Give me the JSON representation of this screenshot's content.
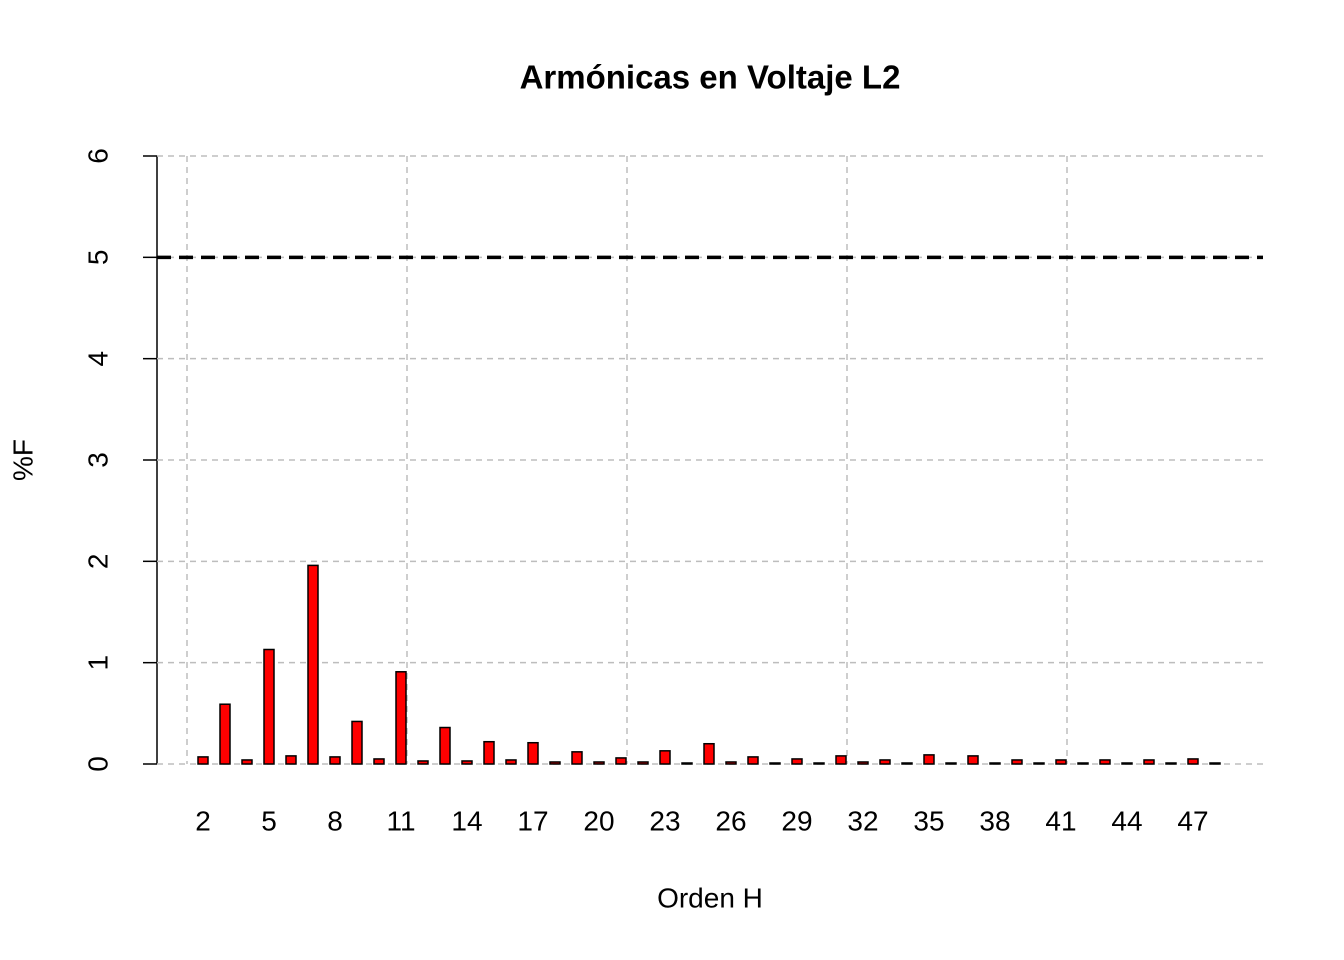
{
  "chart_data": {
    "type": "bar",
    "title": "Armónicas en Voltaje L2",
    "x_label": "Orden H",
    "y_label": "%F",
    "categories": [
      "2",
      null,
      null,
      "5",
      null,
      null,
      "8",
      null,
      null,
      "11",
      null,
      null,
      "14",
      null,
      null,
      "17",
      null,
      null,
      "20",
      null,
      null,
      "23",
      null,
      null,
      "26",
      null,
      null,
      "29",
      null,
      null,
      "32",
      null,
      null,
      "35",
      null,
      null,
      "38",
      null,
      null,
      "41",
      null,
      null,
      "44",
      null,
      null,
      "47",
      null
    ],
    "values": [
      0.07,
      0.59,
      0.04,
      1.13,
      0.08,
      1.96,
      0.07,
      0.42,
      0.05,
      0.91,
      0.03,
      0.36,
      0.03,
      0.22,
      0.04,
      0.21,
      0.02,
      0.12,
      0.02,
      0.06,
      0.02,
      0.13,
      0.01,
      0.2,
      0.02,
      0.07,
      0.01,
      0.05,
      0.01,
      0.08,
      0.02,
      0.04,
      0.01,
      0.09,
      0.01,
      0.08,
      0.01,
      0.04,
      0.01,
      0.04,
      0.01,
      0.04,
      0.01,
      0.04,
      0.01,
      0.05,
      0.01
    ],
    "color": "#ff0000",
    "ylim": [
      0,
      6
    ],
    "yticks": [
      0,
      1,
      2,
      3,
      4,
      5,
      6
    ],
    "grid": true,
    "reference_line": 5
  }
}
